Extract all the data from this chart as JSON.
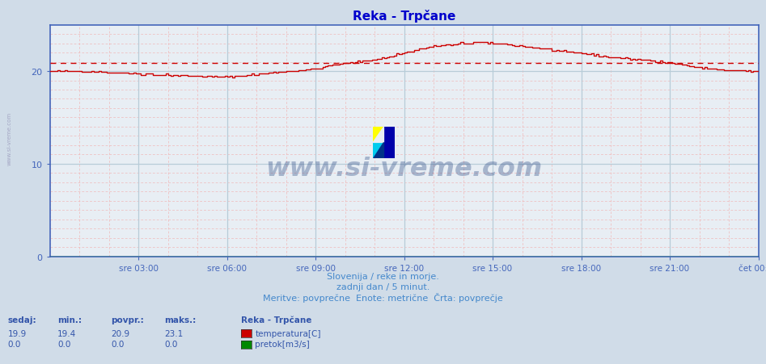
{
  "title": "Reka - Trpčane",
  "title_color": "#0000cc",
  "background_color": "#d0dce8",
  "plot_bg_color": "#e8eef4",
  "grid_major_color": "#b8ccd8",
  "grid_minor_color": "#f0b8b8",
  "axis_color": "#4466bb",
  "ylim": [
    0,
    25
  ],
  "xlim": [
    0,
    288
  ],
  "yticks": [
    0,
    10,
    20
  ],
  "xtick_positions": [
    36,
    72,
    108,
    144,
    180,
    216,
    252,
    288
  ],
  "xtick_labels": [
    "sre 03:00",
    "sre 06:00",
    "sre 09:00",
    "sre 12:00",
    "sre 15:00",
    "sre 18:00",
    "sre 21:00",
    "čet 00:00"
  ],
  "avg_line_value": 20.9,
  "avg_line_color": "#cc0000",
  "temp_line_color": "#cc0000",
  "flow_line_color": "#008800",
  "subtitle1": "Slovenija / reke in morje.",
  "subtitle2": "zadnji dan / 5 minut.",
  "subtitle3": "Meritve: povprečne  Enote: metrične  Črta: povprečje",
  "subtitle_color": "#4488cc",
  "legend_title": "Reka - Trpčane",
  "legend_temp_label": "temperatura[C]",
  "legend_flow_label": "pretok[m3/s]",
  "stats_labels": [
    "sedaj:",
    "min.:",
    "povpr.:",
    "maks.:"
  ],
  "stats_temp": [
    19.9,
    19.4,
    20.9,
    23.1
  ],
  "stats_flow": [
    0.0,
    0.0,
    0.0,
    0.0
  ],
  "stats_color": "#3355aa",
  "watermark": "www.si-vreme.com",
  "watermark_color": "#1a3a7a",
  "logo_colors": [
    "#ffff00",
    "#00ccee",
    "#0000aa",
    "#003388"
  ],
  "sidebar_text_color": "#9999bb"
}
